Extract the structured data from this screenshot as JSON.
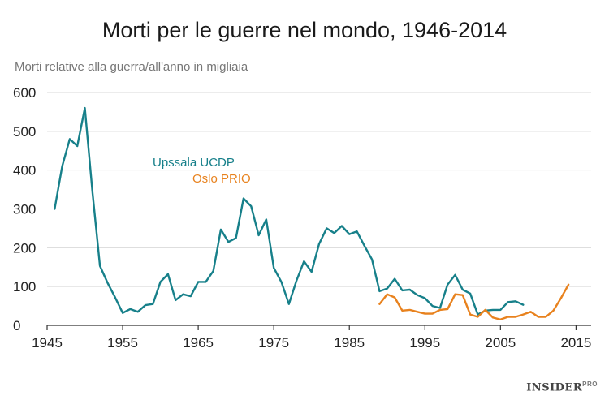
{
  "chart_data": {
    "type": "line",
    "title": "Morti per le guerre nel mondo, 1946-2014",
    "ylabel": "Morti relative alla guerra/all'anno in migliaia",
    "xlabel": "",
    "xlim": [
      1945,
      2017
    ],
    "ylim": [
      0,
      600
    ],
    "x_ticks": [
      1945,
      1955,
      1965,
      1975,
      1985,
      1995,
      2005,
      2015
    ],
    "y_ticks": [
      0,
      100,
      200,
      300,
      400,
      500,
      600
    ],
    "grid": "horizontal",
    "series": [
      {
        "name": "Upssala UCDP",
        "color": "#17808a",
        "x": [
          1946,
          1947,
          1948,
          1949,
          1950,
          1951,
          1952,
          1953,
          1954,
          1955,
          1956,
          1957,
          1958,
          1959,
          1960,
          1961,
          1962,
          1963,
          1964,
          1965,
          1966,
          1967,
          1968,
          1969,
          1970,
          1971,
          1972,
          1973,
          1974,
          1975,
          1976,
          1977,
          1978,
          1979,
          1980,
          1981,
          1982,
          1983,
          1984,
          1985,
          1986,
          1987,
          1988,
          1989,
          1990,
          1991,
          1992,
          1993,
          1994,
          1995,
          1996,
          1997,
          1998,
          1999,
          2000,
          2001,
          2002,
          2003,
          2004,
          2005,
          2006,
          2007,
          2008
        ],
        "y": [
          300,
          410,
          480,
          462,
          560,
          345,
          153,
          110,
          72,
          32,
          42,
          35,
          52,
          55,
          112,
          132,
          65,
          80,
          75,
          112,
          112,
          140,
          247,
          215,
          225,
          327,
          307,
          232,
          273,
          148,
          112,
          55,
          115,
          165,
          138,
          210,
          250,
          238,
          256,
          235,
          242,
          205,
          170,
          88,
          95,
          120,
          90,
          92,
          78,
          70,
          50,
          45,
          105,
          130,
          92,
          82,
          28,
          38,
          40,
          40,
          60,
          62,
          53
        ]
      },
      {
        "name": "Oslo PRIO",
        "color": "#e8821e",
        "x": [
          1989,
          1990,
          1991,
          1992,
          1993,
          1994,
          1995,
          1996,
          1997,
          1998,
          1999,
          2000,
          2001,
          2002,
          2003,
          2004,
          2005,
          2006,
          2007,
          2008,
          2009,
          2010,
          2011,
          2012,
          2013,
          2014
        ],
        "y": [
          55,
          80,
          72,
          38,
          40,
          35,
          30,
          30,
          40,
          42,
          80,
          78,
          28,
          22,
          40,
          20,
          15,
          22,
          22,
          28,
          35,
          22,
          22,
          38,
          70,
          105
        ]
      }
    ],
    "series_labels": [
      "Upssala UCDP",
      "Oslo PRIO"
    ]
  },
  "brand": {
    "name": "INSIDER",
    "suffix": "PRO"
  }
}
